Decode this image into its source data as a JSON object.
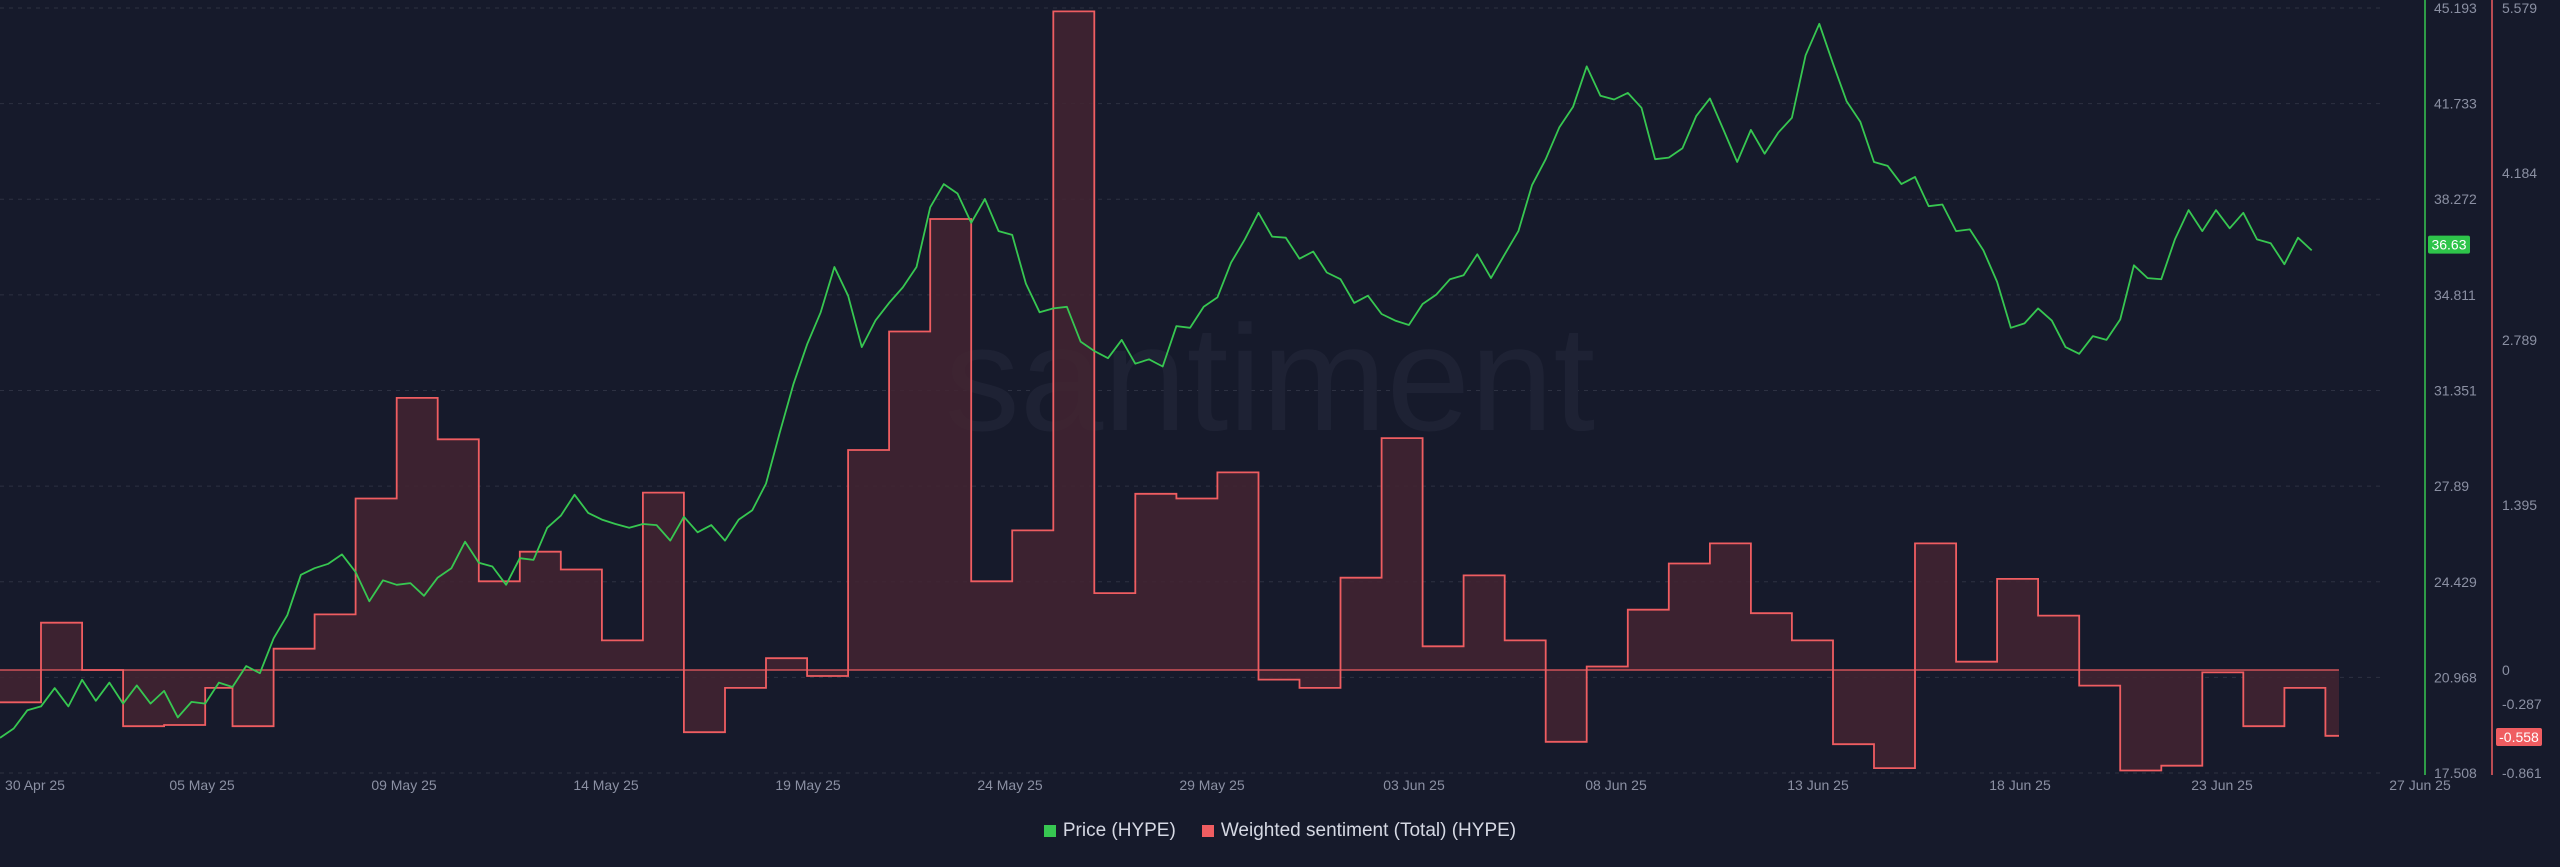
{
  "watermark": "santiment",
  "legend": {
    "price_label": "Price (HYPE)",
    "sentiment_label": "Weighted sentiment (Total) (HYPE)"
  },
  "colors": {
    "background": "#161a2b",
    "price": "#37c751",
    "sentiment": "#ef5d61",
    "sentiment_fill": "#432531",
    "grid": "#2d3142"
  },
  "chart_data": {
    "type": "line",
    "x_labels": [
      "30 Apr 25",
      "05 May 25",
      "09 May 25",
      "14 May 25",
      "19 May 25",
      "24 May 25",
      "29 May 25",
      "03 Jun 25",
      "08 Jun 25",
      "13 Jun 25",
      "18 Jun 25",
      "23 Jun 25",
      "27 Jun 25"
    ],
    "x_range": [
      "30 Apr 25",
      "27 Jun 25"
    ],
    "grid": "horizontal dashed",
    "legend_position": "bottom",
    "price_axis": {
      "side": "right",
      "ticks": [
        "45.193",
        "41.733",
        "38.272",
        "34.811",
        "31.351",
        "27.89",
        "24.429",
        "20.968",
        "17.508"
      ],
      "range": [
        17.508,
        45.193
      ],
      "current_value_label": "36.63"
    },
    "sentiment_axis": {
      "side": "right",
      "ticks": [
        "5.579",
        "4.184",
        "2.789",
        "1.395",
        "0",
        "-0.287",
        "-0.861"
      ],
      "range": [
        -0.861,
        5.579
      ],
      "current_value_label": "-0.558"
    },
    "series": [
      {
        "name": "Price (HYPE)",
        "type": "line",
        "axis": "price",
        "points": [
          [
            0,
            18.6
          ],
          [
            0.5,
            19.3
          ],
          [
            1,
            19.6
          ],
          [
            1.5,
            20.1
          ],
          [
            2,
            20.4
          ],
          [
            2.5,
            20.1
          ],
          [
            3,
            20.7
          ],
          [
            3.5,
            20.3
          ],
          [
            4,
            20.6
          ],
          [
            4.5,
            20.2
          ],
          [
            5,
            20.5
          ],
          [
            5.5,
            20.2
          ],
          [
            6,
            20.3
          ],
          [
            6.5,
            19.7
          ],
          [
            7,
            19.9
          ],
          [
            7.5,
            20.2
          ],
          [
            8,
            20.6
          ],
          [
            8.5,
            20.8
          ],
          [
            9,
            21.2
          ],
          [
            9.5,
            21.3
          ],
          [
            10,
            22.2
          ],
          [
            10.5,
            23.4
          ],
          [
            11,
            24.5
          ],
          [
            11.5,
            25.1
          ],
          [
            12,
            24.9
          ],
          [
            12.5,
            25.6
          ],
          [
            13,
            24.6
          ],
          [
            13.5,
            23.9
          ],
          [
            14,
            24.3
          ],
          [
            14.5,
            24.5
          ],
          [
            15,
            24.2
          ],
          [
            15.5,
            24.1
          ],
          [
            16,
            24.4
          ],
          [
            16.5,
            25.1
          ],
          [
            17,
            25.7
          ],
          [
            17.5,
            25.3
          ],
          [
            18,
            24.8
          ],
          [
            18.5,
            24.5
          ],
          [
            19,
            25.1
          ],
          [
            19.5,
            25.4
          ],
          [
            20,
            26.2
          ],
          [
            20.5,
            27.0
          ],
          [
            21,
            27.4
          ],
          [
            21.5,
            27.1
          ],
          [
            22,
            26.5
          ],
          [
            22.5,
            26.7
          ],
          [
            23,
            26.2
          ],
          [
            23.5,
            26.7
          ],
          [
            24,
            26.3
          ],
          [
            24.5,
            26.1
          ],
          [
            25,
            26.6
          ],
          [
            25.5,
            26.4
          ],
          [
            26,
            26.3
          ],
          [
            26.5,
            26.1
          ],
          [
            27,
            26.5
          ],
          [
            27.5,
            27.2
          ],
          [
            28,
            27.8
          ],
          [
            28.5,
            30.0
          ],
          [
            29,
            31.4
          ],
          [
            29.5,
            33.2
          ],
          [
            30,
            34.0
          ],
          [
            30.5,
            36.0
          ],
          [
            31,
            34.6
          ],
          [
            31.5,
            33.1
          ],
          [
            32,
            33.7
          ],
          [
            32.5,
            34.7
          ],
          [
            33,
            34.9
          ],
          [
            33.5,
            36.0
          ],
          [
            34,
            37.8
          ],
          [
            34.5,
            39.0
          ],
          [
            35,
            38.3
          ],
          [
            35.5,
            37.6
          ],
          [
            36,
            38.1
          ],
          [
            36.5,
            37.3
          ],
          [
            37,
            36.8
          ],
          [
            37.5,
            35.4
          ],
          [
            38,
            34.0
          ],
          [
            38.5,
            34.5
          ],
          [
            39,
            34.2
          ],
          [
            39.5,
            33.3
          ],
          [
            40,
            32.6
          ],
          [
            40.5,
            32.7
          ],
          [
            41,
            33.0
          ],
          [
            41.5,
            32.5
          ],
          [
            42,
            32.3
          ],
          [
            42.5,
            32.4
          ],
          [
            43,
            33.5
          ],
          [
            43.5,
            33.8
          ],
          [
            44,
            34.2
          ],
          [
            44.5,
            34.9
          ],
          [
            45,
            35.8
          ],
          [
            45.5,
            37.0
          ],
          [
            46,
            37.6
          ],
          [
            46.5,
            37.1
          ],
          [
            47,
            36.7
          ],
          [
            47.5,
            36.3
          ],
          [
            48,
            36.2
          ],
          [
            48.5,
            35.8
          ],
          [
            49,
            35.2
          ],
          [
            49.5,
            34.7
          ],
          [
            50,
            34.6
          ],
          [
            50.5,
            34.3
          ],
          [
            51,
            33.7
          ],
          [
            51.5,
            33.9
          ],
          [
            52,
            34.3
          ],
          [
            52.5,
            35.0
          ],
          [
            53,
            35.2
          ],
          [
            53.5,
            35.7
          ],
          [
            54,
            36.1
          ],
          [
            54.5,
            35.6
          ],
          [
            55,
            36.1
          ],
          [
            55.5,
            37.3
          ],
          [
            56,
            38.6
          ],
          [
            56.5,
            39.9
          ],
          [
            57,
            40.7
          ],
          [
            57.5,
            41.8
          ],
          [
            58,
            42.9
          ],
          [
            58.5,
            42.2
          ],
          [
            59,
            41.7
          ],
          [
            59.5,
            42.3
          ],
          [
            60,
            41.4
          ],
          [
            60.5,
            39.9
          ],
          [
            61,
            39.6
          ],
          [
            61.5,
            40.3
          ],
          [
            62,
            41.1
          ],
          [
            62.5,
            42.1
          ],
          [
            63,
            40.6
          ],
          [
            63.5,
            39.8
          ],
          [
            64,
            40.6
          ],
          [
            64.5,
            40.1
          ],
          [
            65,
            40.5
          ],
          [
            65.5,
            41.4
          ],
          [
            66,
            43.3
          ],
          [
            66.5,
            44.8
          ],
          [
            67,
            43.0
          ],
          [
            67.5,
            42.0
          ],
          [
            68,
            40.9
          ],
          [
            68.5,
            39.8
          ],
          [
            69,
            39.3
          ],
          [
            69.5,
            39.0
          ],
          [
            70,
            38.9
          ],
          [
            70.5,
            38.2
          ],
          [
            71,
            37.9
          ],
          [
            71.5,
            37.3
          ],
          [
            72,
            37.0
          ],
          [
            72.5,
            36.6
          ],
          [
            73,
            35.1
          ],
          [
            73.5,
            33.8
          ],
          [
            74,
            33.6
          ],
          [
            74.5,
            34.5
          ],
          [
            75,
            33.7
          ],
          [
            75.5,
            33.1
          ],
          [
            76,
            32.5
          ],
          [
            76.5,
            33.5
          ],
          [
            77,
            33.0
          ],
          [
            77.5,
            34.1
          ],
          [
            78,
            35.7
          ],
          [
            78.5,
            35.6
          ],
          [
            79,
            35.2
          ],
          [
            79.5,
            37.0
          ],
          [
            80,
            37.7
          ],
          [
            80.5,
            37.3
          ],
          [
            81,
            37.7
          ],
          [
            81.5,
            37.4
          ],
          [
            82,
            37.6
          ],
          [
            82.5,
            37.0
          ],
          [
            83,
            36.5
          ],
          [
            83.5,
            36.1
          ],
          [
            84,
            36.7
          ],
          [
            84.5,
            36.6
          ]
        ]
      },
      {
        "name": "Weighted sentiment (Total) (HYPE)",
        "type": "step",
        "axis": "sentiment",
        "points": [
          [
            0,
            -0.27
          ],
          [
            1.5,
            0.4
          ],
          [
            3,
            0.0
          ],
          [
            4.5,
            -0.47
          ],
          [
            6,
            -0.46
          ],
          [
            7.5,
            -0.15
          ],
          [
            8.5,
            -0.47
          ],
          [
            10,
            0.18
          ],
          [
            11.5,
            0.47
          ],
          [
            13,
            1.45
          ],
          [
            14.5,
            2.3
          ],
          [
            16,
            1.95
          ],
          [
            17.5,
            0.75
          ],
          [
            19,
            1.0
          ],
          [
            20.5,
            0.85
          ],
          [
            22,
            0.25
          ],
          [
            23.5,
            1.5
          ],
          [
            25,
            -0.52
          ],
          [
            26.5,
            -0.15
          ],
          [
            28,
            0.1
          ],
          [
            29.5,
            -0.05
          ],
          [
            31,
            1.86
          ],
          [
            32.5,
            2.86
          ],
          [
            34,
            3.8
          ],
          [
            35.5,
            0.75
          ],
          [
            37,
            1.18
          ],
          [
            38.5,
            5.55
          ],
          [
            40,
            0.65
          ],
          [
            41.5,
            1.49
          ],
          [
            43,
            1.45
          ],
          [
            44.5,
            1.67
          ],
          [
            46,
            -0.08
          ],
          [
            47.5,
            -0.15
          ],
          [
            49,
            0.78
          ],
          [
            50.5,
            1.96
          ],
          [
            52,
            0.2
          ],
          [
            53.5,
            0.8
          ],
          [
            55,
            0.25
          ],
          [
            56.5,
            -0.6
          ],
          [
            58,
            0.03
          ],
          [
            59.5,
            0.51
          ],
          [
            61,
            0.9
          ],
          [
            62.5,
            1.07
          ],
          [
            64,
            0.48
          ],
          [
            65.5,
            0.25
          ],
          [
            67,
            -0.62
          ],
          [
            68.5,
            -0.82
          ],
          [
            70,
            1.07
          ],
          [
            71.5,
            0.07
          ],
          [
            73,
            0.77
          ],
          [
            74.5,
            0.46
          ],
          [
            76,
            -0.13
          ],
          [
            77.5,
            -0.84
          ],
          [
            79,
            -0.8
          ],
          [
            80.5,
            -0.02
          ],
          [
            82,
            -0.47
          ],
          [
            83.5,
            -0.15
          ],
          [
            85,
            -0.55
          ],
          [
            86.5,
            -0.55
          ]
        ]
      }
    ]
  }
}
